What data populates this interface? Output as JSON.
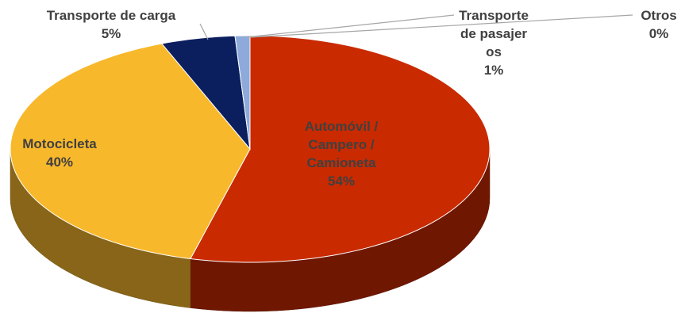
{
  "chart_data": {
    "type": "pie3d",
    "categories": [
      "Automóvil / Campero / Camioneta",
      "Motocicleta",
      "Transporte de carga",
      "Transporte de pasajeros",
      "Otros"
    ],
    "values": [
      54,
      40,
      5,
      1,
      0
    ],
    "value_labels": [
      "54%",
      "40%",
      "5%",
      "1%",
      "0%"
    ],
    "colors": [
      "#c92a00",
      "#f8b82b",
      "#0b1f5e",
      "#8eaadb",
      "#a5a5a5"
    ]
  }
}
